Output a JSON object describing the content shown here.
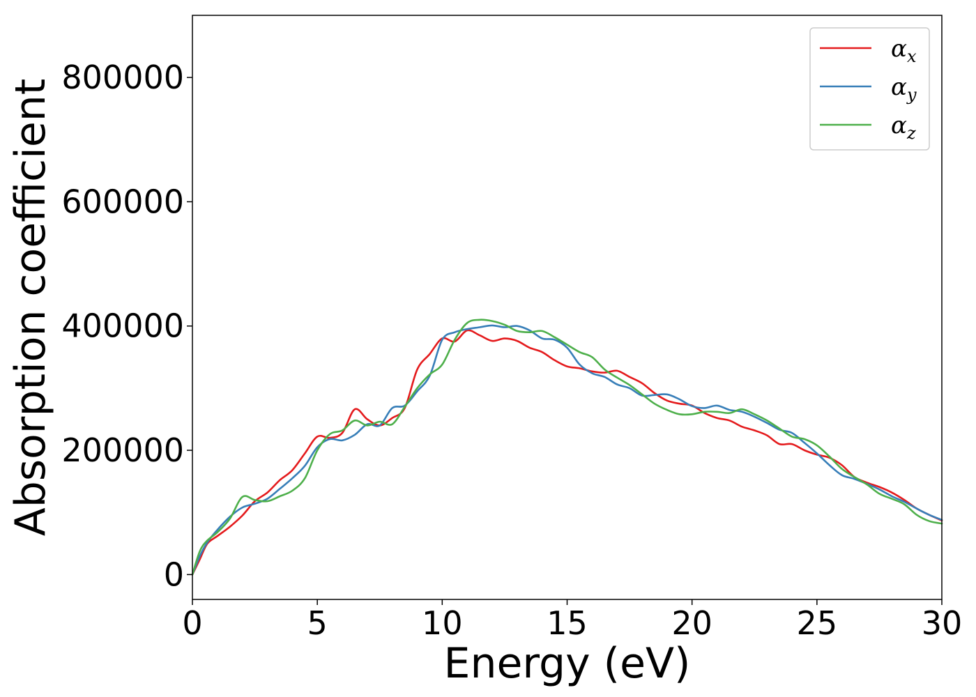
{
  "chart_data": {
    "type": "line",
    "title": "",
    "xlabel": "Energy (eV)",
    "ylabel": "Absorption coefficient",
    "xlim": [
      0,
      30
    ],
    "ylim": [
      -40000,
      900000
    ],
    "xticks": [
      0,
      5,
      10,
      15,
      20,
      25,
      30
    ],
    "yticks": [
      0,
      200000,
      400000,
      600000,
      800000
    ],
    "xtick_labels": [
      "0",
      "5",
      "10",
      "15",
      "20",
      "25",
      "30"
    ],
    "ytick_labels": [
      "0",
      "200000",
      "400000",
      "600000",
      "800000"
    ],
    "grid": false,
    "legend": {
      "position": "top-right"
    },
    "series": [
      {
        "name": "α_x",
        "label_main": "α",
        "label_sub": "x",
        "color": "#e41a1c",
        "x": [
          0,
          0.3,
          0.6,
          1.0,
          1.5,
          2.0,
          2.5,
          3.0,
          3.5,
          4.0,
          4.5,
          5.0,
          5.5,
          6.0,
          6.5,
          7.0,
          7.5,
          8.0,
          8.5,
          9.0,
          9.5,
          10.0,
          10.5,
          11.0,
          11.5,
          12.0,
          12.5,
          13.0,
          13.5,
          14.0,
          14.5,
          15.0,
          15.5,
          16.0,
          16.5,
          17.0,
          17.5,
          18.0,
          18.5,
          19.0,
          19.5,
          20.0,
          20.5,
          21.0,
          21.5,
          22.0,
          22.5,
          23.0,
          23.5,
          24.0,
          24.5,
          25.0,
          25.5,
          26.0,
          26.5,
          27.0,
          27.5,
          28.0,
          28.5,
          29.0,
          29.5,
          30.0
        ],
        "y": [
          0,
          25000,
          50000,
          62000,
          77000,
          95000,
          118000,
          132000,
          152000,
          168000,
          195000,
          222000,
          220000,
          228000,
          266000,
          250000,
          240000,
          252000,
          268000,
          330000,
          355000,
          380000,
          375000,
          393000,
          385000,
          376000,
          380000,
          376000,
          365000,
          358000,
          345000,
          335000,
          332000,
          327000,
          325000,
          328000,
          318000,
          308000,
          292000,
          280000,
          275000,
          272000,
          260000,
          252000,
          248000,
          238000,
          232000,
          224000,
          210000,
          210000,
          200000,
          193000,
          188000,
          176000,
          157000,
          148000,
          141000,
          132000,
          120000,
          106000,
          96000,
          87000
        ]
      },
      {
        "name": "α_y",
        "label_main": "α",
        "label_sub": "y",
        "color": "#377eb8",
        "x": [
          0,
          0.3,
          0.6,
          1.0,
          1.5,
          2.0,
          2.5,
          3.0,
          3.5,
          4.0,
          4.5,
          5.0,
          5.5,
          6.0,
          6.5,
          7.0,
          7.5,
          8.0,
          8.5,
          9.0,
          9.5,
          10.0,
          10.5,
          11.0,
          11.5,
          12.0,
          12.5,
          13.0,
          13.5,
          14.0,
          14.5,
          15.0,
          15.5,
          16.0,
          16.5,
          17.0,
          17.5,
          18.0,
          18.5,
          19.0,
          19.5,
          20.0,
          20.5,
          21.0,
          21.5,
          22.0,
          22.5,
          23.0,
          23.5,
          24.0,
          24.5,
          25.0,
          25.5,
          26.0,
          26.5,
          27.0,
          27.5,
          28.0,
          28.5,
          29.0,
          29.5,
          30.0
        ],
        "y": [
          0,
          30000,
          52000,
          72000,
          93000,
          108000,
          114000,
          122000,
          138000,
          155000,
          175000,
          205000,
          218000,
          216000,
          225000,
          242000,
          240000,
          268000,
          272000,
          295000,
          320000,
          378000,
          390000,
          395000,
          398000,
          401000,
          398000,
          400000,
          393000,
          380000,
          378000,
          365000,
          338000,
          324000,
          318000,
          306000,
          300000,
          288000,
          289000,
          290000,
          282000,
          271000,
          268000,
          272000,
          265000,
          262000,
          254000,
          244000,
          233000,
          228000,
          212000,
          195000,
          176000,
          160000,
          154000,
          146000,
          137000,
          126000,
          117000,
          106000,
          96000,
          88000
        ]
      },
      {
        "name": "α_z",
        "label_main": "α",
        "label_sub": "z",
        "color": "#4daf4a",
        "x": [
          0,
          0.3,
          0.6,
          1.0,
          1.5,
          2.0,
          2.5,
          3.0,
          3.5,
          4.0,
          4.5,
          5.0,
          5.5,
          6.0,
          6.5,
          7.0,
          7.5,
          8.0,
          8.5,
          9.0,
          9.5,
          10.0,
          10.5,
          11.0,
          11.5,
          12.0,
          12.5,
          13.0,
          13.5,
          14.0,
          14.5,
          15.0,
          15.5,
          16.0,
          16.5,
          17.0,
          17.5,
          18.0,
          18.5,
          19.0,
          19.5,
          20.0,
          20.5,
          21.0,
          21.5,
          22.0,
          22.5,
          23.0,
          23.5,
          24.0,
          24.5,
          25.0,
          25.5,
          26.0,
          26.5,
          27.0,
          27.5,
          28.0,
          28.5,
          29.0,
          29.5,
          30.0
        ],
        "y": [
          0,
          38000,
          55000,
          68000,
          90000,
          125000,
          120000,
          118000,
          126000,
          135000,
          155000,
          200000,
          226000,
          232000,
          248000,
          240000,
          246000,
          242000,
          270000,
          300000,
          322000,
          338000,
          378000,
          405000,
          410000,
          408000,
          402000,
          392000,
          390000,
          392000,
          382000,
          370000,
          358000,
          350000,
          330000,
          317000,
          305000,
          290000,
          275000,
          265000,
          258000,
          258000,
          262000,
          262000,
          260000,
          266000,
          258000,
          248000,
          235000,
          222000,
          218000,
          208000,
          190000,
          170000,
          157000,
          145000,
          130000,
          122000,
          113000,
          96000,
          86000,
          82000
        ]
      }
    ]
  }
}
